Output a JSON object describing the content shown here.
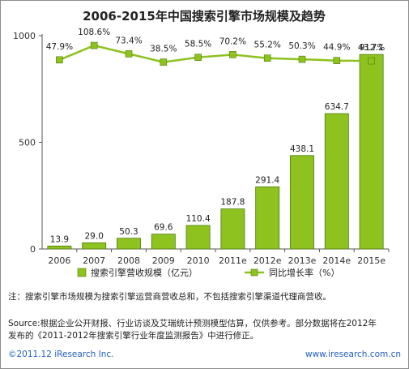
{
  "chart_data": {
    "type": "bar",
    "title": "2006-2015年中国搜索引擎市场规模及趋势",
    "categories": [
      "2006",
      "2007",
      "2008",
      "2009",
      "2010",
      "2011e",
      "2012e",
      "2013e",
      "2014e",
      "2015e"
    ],
    "series": [
      {
        "name": "搜索引擎营收规模（亿元）",
        "type": "bar",
        "values": [
          13.9,
          29.0,
          50.3,
          69.6,
          110.4,
          187.8,
          291.4,
          438.1,
          634.7,
          912.1
        ],
        "value_labels": [
          "13.9",
          "29.0",
          "50.3",
          "69.6",
          "110.4",
          "187.8",
          "291.4",
          "438.1",
          "634.7",
          "912.1"
        ]
      },
      {
        "name": "同比增长率（%）",
        "type": "line",
        "values": [
          47.9,
          108.6,
          73.4,
          38.5,
          58.5,
          70.2,
          55.2,
          50.3,
          44.9,
          43.7
        ],
        "value_labels": [
          "47.9%",
          "108.6%",
          "73.4%",
          "38.5%",
          "58.5%",
          "70.2%",
          "55.2%",
          "50.3%",
          "44.9%",
          "43.7%"
        ]
      }
    ],
    "ylim": [
      0,
      1000
    ],
    "yticks": [
      "0",
      "500",
      "1000"
    ],
    "y_right_range": [
      -750,
      150
    ],
    "grid": false,
    "legend_position": "bottom",
    "colors": {
      "bar_fill": "#8dc21f",
      "bar_stroke": "#4f7d0d",
      "line": "#8dc21f",
      "marker": "#8dc21f"
    }
  },
  "notes": {
    "note1": "注：搜索引擎市场规模为搜索引擎运营商营收总和，不包括搜索引擎渠道代理商营收。",
    "source_line1": "Source:根据企业公开财报、行业访谈及艾瑞统计预测模型估算，仅供参考。部分数据将在2012年",
    "source_line2": "发布的《2011-2012年搜索引擎行业年度监测报告》中进行修正。"
  },
  "footer": {
    "copyright": "©2011.12 iResearch Inc.",
    "website": "www.iresearch.com.cn"
  }
}
